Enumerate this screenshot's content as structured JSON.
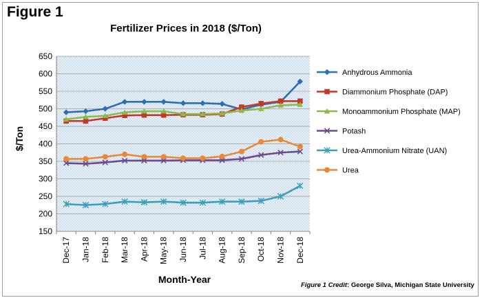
{
  "figure_label": "Figure 1",
  "credit": {
    "lead": "Figure 1 Credit",
    "text": ": George Silva, Michigan State University"
  },
  "chart_data": {
    "type": "line",
    "title": "Fertilizer Prices in 2018 ($/Ton)",
    "xlabel": "Month-Year",
    "ylabel": "$/Ton",
    "ylim": [
      150,
      650
    ],
    "ytick_step": 50,
    "grid": true,
    "legend_position": "right",
    "categories": [
      "Dec-17",
      "Jan-18",
      "Feb-18",
      "Mar-18",
      "Apr-18",
      "May-18",
      "Jun-18",
      "Jul-18",
      "Aug-18",
      "Sep-18",
      "Oct-18",
      "Nov-18",
      "Dec-18"
    ],
    "series": [
      {
        "name": "Anhydrous Ammonia",
        "color": "#2e6db4",
        "marker": "diamond",
        "values": [
          490,
          493,
          500,
          520,
          520,
          520,
          516,
          516,
          514,
          498,
          512,
          520,
          578
        ]
      },
      {
        "name": "Diammonium Phosphate (DAP)",
        "color": "#c0392b",
        "marker": "square",
        "values": [
          465,
          465,
          473,
          481,
          482,
          482,
          483,
          483,
          485,
          505,
          515,
          522,
          522
        ]
      },
      {
        "name": "Monoammonium Phosphate (MAP)",
        "color": "#8fb84a",
        "marker": "triangle",
        "values": [
          470,
          477,
          480,
          490,
          493,
          493,
          485,
          485,
          487,
          495,
          500,
          510,
          512
        ]
      },
      {
        "name": "Potash",
        "color": "#6a4b8c",
        "marker": "x",
        "values": [
          345,
          343,
          347,
          352,
          352,
          352,
          353,
          353,
          353,
          357,
          368,
          375,
          378
        ]
      },
      {
        "name": "Urea-Ammonium Nitrate (UAN)",
        "color": "#3aa0b8",
        "marker": "star",
        "values": [
          228,
          225,
          228,
          235,
          233,
          235,
          232,
          232,
          235,
          235,
          237,
          250,
          280
        ]
      },
      {
        "name": "Urea",
        "color": "#e8893a",
        "marker": "circle",
        "values": [
          357,
          357,
          363,
          370,
          363,
          363,
          359,
          359,
          364,
          378,
          406,
          412,
          392
        ]
      }
    ]
  }
}
